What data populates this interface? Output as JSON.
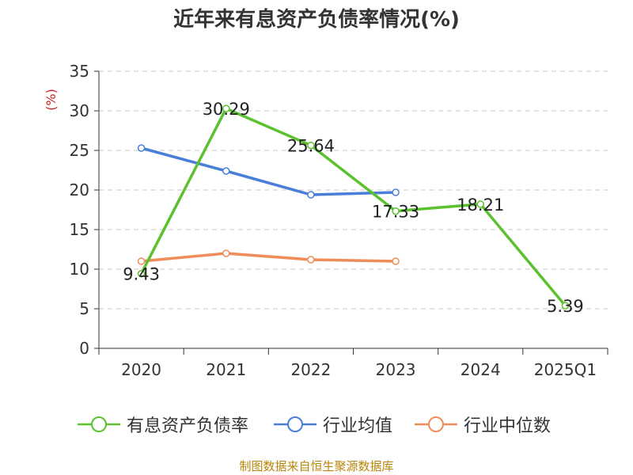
{
  "page_title": "近年来有息资产负债率情况(%)",
  "source_note": "制图数据来自恒生聚源数据库",
  "chart_data": {
    "type": "line",
    "title": "近年来有息资产负债率情况(%)",
    "ylabel": "(%)",
    "xlabel": "",
    "categories": [
      "2020",
      "2021",
      "2022",
      "2023",
      "2024",
      "2025Q1"
    ],
    "ylim": [
      0,
      35
    ],
    "yticks": [
      "0",
      "5",
      "10",
      "15",
      "20",
      "25",
      "30",
      "35"
    ],
    "grid": true,
    "legend_position": "bottom",
    "series": [
      {
        "name": "有息资产负债率",
        "color": "#5cc12f",
        "values": [
          9.43,
          30.29,
          25.64,
          17.33,
          18.21,
          5.39
        ],
        "labels": [
          "9.43",
          "30.29",
          "25.64",
          "17.33",
          "18.21",
          "5.39"
        ]
      },
      {
        "name": "行业均值",
        "color": "#4a7fd9",
        "values": [
          25.3,
          22.4,
          19.4,
          19.7,
          null,
          null
        ]
      },
      {
        "name": "行业中位数",
        "color": "#f08c5a",
        "values": [
          11.0,
          12.0,
          11.2,
          11.0,
          null,
          null
        ]
      }
    ]
  }
}
